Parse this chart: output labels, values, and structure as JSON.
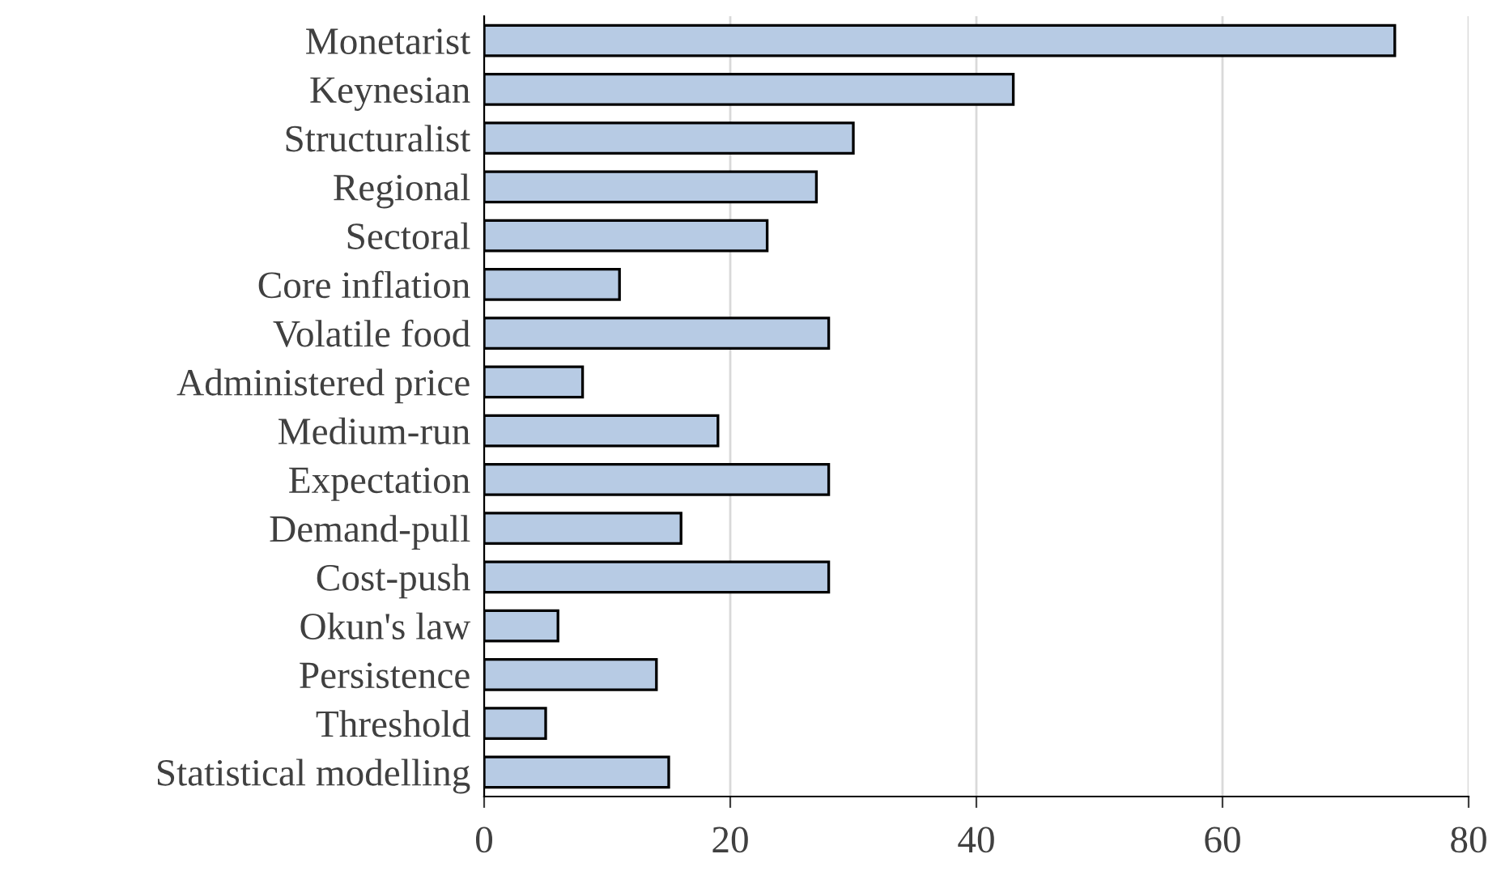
{
  "chart_data": {
    "type": "bar",
    "orientation": "horizontal",
    "categories": [
      "Monetarist",
      "Keynesian",
      "Structuralist",
      "Regional",
      "Sectoral",
      "Core inflation",
      "Volatile food",
      "Administered price",
      "Medium-run",
      "Expectation",
      "Demand-pull",
      "Cost-push",
      "Okun's law",
      "Persistence",
      "Threshold",
      "Statistical modelling"
    ],
    "values": [
      74,
      43,
      30,
      27,
      23,
      11,
      28,
      8,
      19,
      28,
      16,
      28,
      6,
      14,
      5,
      15
    ],
    "color": "#b7cbe4",
    "xlim": [
      0,
      80
    ],
    "xticks": [
      0,
      20,
      40,
      60,
      80
    ],
    "grid": "x"
  }
}
